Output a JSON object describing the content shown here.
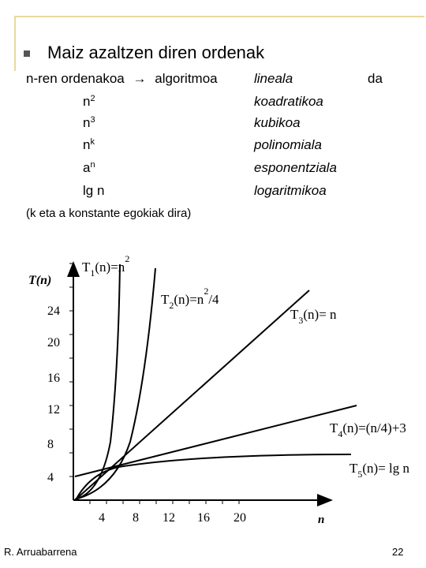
{
  "heading": {
    "bullet_icon": "square-bullet",
    "title": "Maiz azaltzen diren ordenak"
  },
  "orders": {
    "intro": "n-ren ordenakoa",
    "arrow": "→",
    "algo_word": "algoritmoa",
    "first_name": "lineala",
    "suffix": "da",
    "rows": [
      {
        "base": "n",
        "exp": "2",
        "name": "koadratikoa"
      },
      {
        "base": "n",
        "exp": "3",
        "name": "kubikoa"
      },
      {
        "base": "n",
        "exp": "k",
        "name": "polinomiala"
      },
      {
        "base": "a",
        "exp": "n",
        "name": "esponentziala"
      },
      {
        "base": "lg n",
        "exp": "",
        "name": "logaritmikoa"
      }
    ]
  },
  "note": "(k eta a konstante egokiak dira)",
  "chart_data": {
    "type": "line",
    "ylabel": "T(n)",
    "xlabel": "n",
    "x_ticks": [
      "4",
      "8",
      "12",
      "16",
      "20"
    ],
    "y_ticks": [
      "4",
      "8",
      "12",
      "16",
      "20",
      "24"
    ],
    "series_labels": {
      "t1": {
        "T": "T",
        "sub": "1",
        "text": "(n)=n",
        "sup": "2"
      },
      "t2": {
        "T": "T",
        "sub": "2",
        "text": "(n)=n",
        "sup": "2",
        "tail": "/4"
      },
      "t3": {
        "T": "T",
        "sub": "3",
        "text": "(n)= n"
      },
      "t4": {
        "T": "T",
        "sub": "4",
        "text": "(n)=(n/4)+3"
      },
      "t5": {
        "T": "T",
        "sub": "5",
        "text": "(n)= lg n"
      }
    }
  },
  "footer": {
    "author": "R. Arruabarrena",
    "page": "22"
  }
}
